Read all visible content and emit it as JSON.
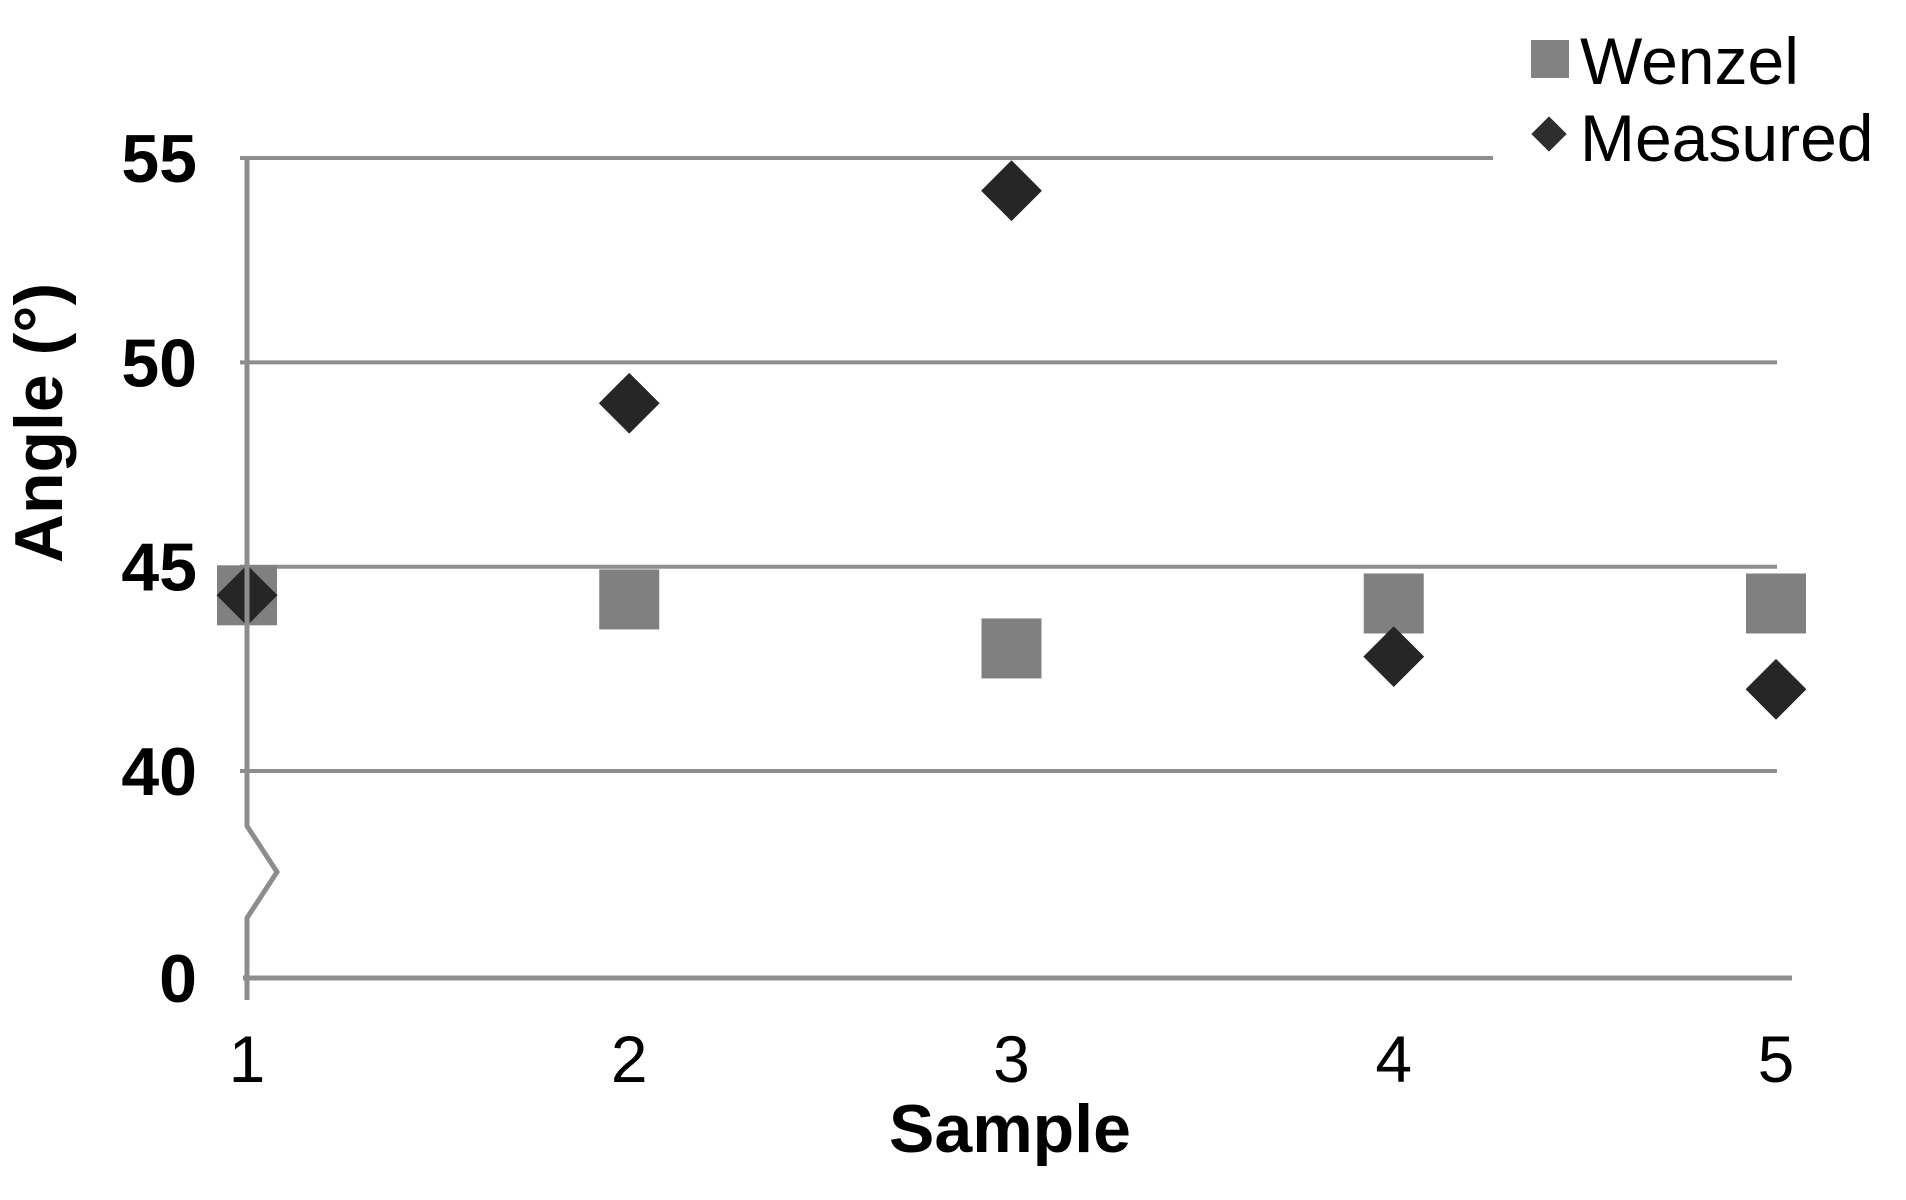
{
  "chart_data": {
    "type": "scatter",
    "title": "",
    "xlabel": "Sample",
    "ylabel": "Angle (°)",
    "x": [
      1,
      2,
      3,
      4,
      5
    ],
    "series": [
      {
        "name": "Wenzel",
        "marker": "square",
        "color": "#808080",
        "values": [
          44.3,
          44.2,
          43.0,
          44.1,
          44.1
        ]
      },
      {
        "name": "Measured",
        "marker": "diamond",
        "color": "#262626",
        "values": [
          44.3,
          49.0,
          54.2,
          42.8,
          42.0
        ]
      }
    ],
    "y_axis": {
      "ticks": [
        55,
        50,
        45,
        40,
        0
      ],
      "axis_break_between": [
        0,
        40
      ],
      "shown_range": [
        40,
        55
      ]
    },
    "x_axis": {
      "ticks": [
        1,
        2,
        3,
        4,
        5
      ]
    },
    "grid": "horizontal",
    "legend_position": "top-right"
  },
  "axes": {
    "y_title": "Angle (°)",
    "x_title": "Sample",
    "y_ticks": [
      {
        "label": "55",
        "value": 55
      },
      {
        "label": "50",
        "value": 50
      },
      {
        "label": "45",
        "value": 45
      },
      {
        "label": "40",
        "value": 40
      },
      {
        "label": "0",
        "value": 0
      }
    ],
    "x_ticks": [
      {
        "label": "1",
        "value": 1
      },
      {
        "label": "2",
        "value": 2
      },
      {
        "label": "3",
        "value": 3
      },
      {
        "label": "4",
        "value": 4
      },
      {
        "label": "5",
        "value": 5
      }
    ]
  },
  "legend": {
    "items": [
      {
        "label": "Wenzel",
        "marker": "square-icon",
        "color": "#828282"
      },
      {
        "label": "Measured",
        "marker": "diamond-icon",
        "color": "#2e2e2e"
      }
    ]
  },
  "colors": {
    "grid": "#8d8d8d",
    "axis": "#8d8d8d",
    "text": "#000000",
    "background": "#ffffff"
  }
}
